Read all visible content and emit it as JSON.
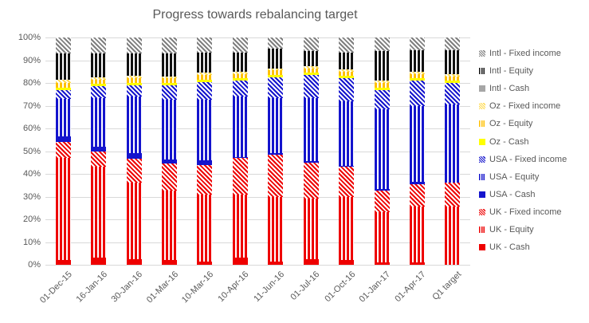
{
  "title": "Progress towards rebalancing target",
  "axes": {
    "y_ticks": [
      "0%",
      "10%",
      "20%",
      "30%",
      "40%",
      "50%",
      "60%",
      "70%",
      "80%",
      "90%",
      "100%"
    ],
    "y_min": 0,
    "y_max": 100
  },
  "legend_order_note": "legend displays series from top of stack to bottom",
  "chart_data": {
    "type": "bar",
    "stacked": true,
    "units": "percent",
    "title": "Progress towards rebalancing target",
    "xlabel": "",
    "ylabel": "",
    "ylim": [
      0,
      100
    ],
    "grid": true,
    "legend_position": "right",
    "categories": [
      "01-Dec-15",
      "16-Jan-16",
      "30-Jan-16",
      "01-Mar-16",
      "10-Mar-16",
      "10-Apr-16",
      "11-Jun-16",
      "01-Jul-16",
      "01-Oct-16",
      "01-Jan-17",
      "01-Apr-17",
      "Q1 target"
    ],
    "series": [
      {
        "name": "UK - Cash",
        "pattern": "solid",
        "color": "#ee0000",
        "values": [
          2,
          3,
          2.5,
          2,
          1.5,
          3,
          1.5,
          2.5,
          2,
          1,
          1,
          0
        ]
      },
      {
        "name": "UK - Equity",
        "pattern": "vstripe",
        "color": "#ee0000",
        "values": [
          45,
          40,
          33.5,
          30.5,
          29.5,
          28,
          28.5,
          26.5,
          28,
          22,
          24.5,
          25.5
        ]
      },
      {
        "name": "UK - Fixed income",
        "pattern": "hatch",
        "color": "#ee0000",
        "values": [
          7,
          7,
          10.5,
          12,
          13,
          16,
          18.5,
          16,
          13,
          9.5,
          10,
          10.5
        ]
      },
      {
        "name": "USA - Cash",
        "pattern": "solid",
        "color": "#1414cd",
        "values": [
          2.5,
          2,
          2.5,
          2,
          2,
          0.5,
          0.5,
          0.5,
          0.5,
          1,
          1,
          0
        ]
      },
      {
        "name": "USA - Equity",
        "pattern": "vstripe",
        "color": "#1414cd",
        "values": [
          16.5,
          21.5,
          25,
          26,
          26.5,
          26.5,
          24.5,
          28,
          28.5,
          35,
          33.5,
          34.5
        ]
      },
      {
        "name": "USA - Fixed income",
        "pattern": "hatch",
        "color": "#1414cd",
        "values": [
          4,
          5,
          5,
          6.5,
          8,
          7,
          9,
          10,
          10,
          8.5,
          11,
          9.5
        ]
      },
      {
        "name": "Oz - Cash",
        "pattern": "solid",
        "color": "#ffff00",
        "values": [
          1,
          1,
          1,
          1,
          1,
          1,
          1,
          1,
          1,
          1,
          1,
          1
        ]
      },
      {
        "name": "Oz - Equity",
        "pattern": "vstripe",
        "color": "#ffc000",
        "values": [
          2,
          2,
          2,
          2,
          2,
          2,
          2,
          2,
          2,
          2,
          2,
          2
        ]
      },
      {
        "name": "Oz - Fixed income",
        "pattern": "hatch",
        "color": "#ffd94d",
        "values": [
          1.5,
          1,
          1,
          1,
          1,
          1,
          1,
          1,
          1,
          1,
          1,
          1
        ]
      },
      {
        "name": "Intl - Cash",
        "pattern": "solid",
        "color": "#a6a6a6",
        "values": [
          0,
          0,
          0,
          0,
          0,
          0,
          0,
          0,
          0,
          0,
          0,
          0
        ]
      },
      {
        "name": "Intl - Equity",
        "pattern": "vstripe",
        "color": "#111111",
        "values": [
          11.5,
          10.5,
          10,
          10,
          9,
          8.5,
          8.5,
          6.5,
          7.5,
          13,
          9.5,
          10.5
        ]
      },
      {
        "name": "Intl - Fixed income",
        "pattern": "hatch",
        "color": "#7f7f7f",
        "values": [
          7,
          7,
          7,
          7,
          6.5,
          6.5,
          5,
          6,
          6.5,
          6,
          5.5,
          5.5
        ]
      }
    ]
  },
  "colors": {
    "uk": "#ee0000",
    "usa": "#1414cd",
    "oz_cash": "#ffff00",
    "oz_equity": "#ffc000",
    "oz_fixed": "#ffd94d",
    "intl_cash": "#a6a6a6",
    "intl_equity": "#111111",
    "intl_fixed": "#7f7f7f",
    "gridline": "#d9d9d9",
    "text": "#595959"
  }
}
